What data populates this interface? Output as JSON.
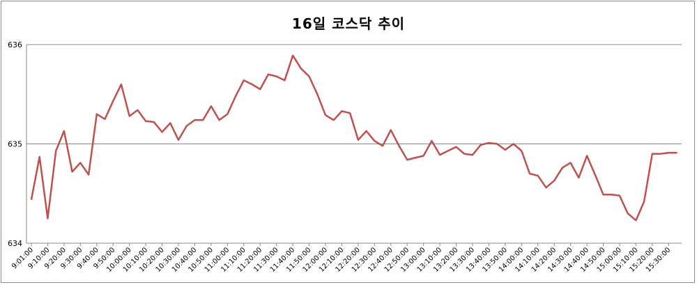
{
  "chart_data": {
    "type": "line",
    "title": "16일 코스닥 추이",
    "xlabel": "",
    "ylabel": "",
    "ylim": [
      634,
      636
    ],
    "yticks": [
      634,
      635,
      636
    ],
    "grid": true,
    "legend": "none",
    "line_color": "#c0504d",
    "x": [
      "9:01:00",
      "9:05:00",
      "9:10:00",
      "9:15:00",
      "9:20:00",
      "9:25:00",
      "9:30:00",
      "9:35:00",
      "9:40:00",
      "9:45:00",
      "9:50:00",
      "9:55:00",
      "10:00:00",
      "10:05:00",
      "10:10:00",
      "10:15:00",
      "10:20:00",
      "10:25:00",
      "10:30:00",
      "10:35:00",
      "10:40:00",
      "10:45:00",
      "10:50:00",
      "10:55:00",
      "11:00:00",
      "11:05:00",
      "11:10:00",
      "11:15:00",
      "11:20:00",
      "11:25:00",
      "11:30:00",
      "11:35:00",
      "11:40:00",
      "11:45:00",
      "11:50:00",
      "11:55:00",
      "12:00:00",
      "12:05:00",
      "12:10:00",
      "12:15:00",
      "12:20:00",
      "12:25:00",
      "12:30:00",
      "12:35:00",
      "12:40:00",
      "12:45:00",
      "12:50:00",
      "12:55:00",
      "13:00:00",
      "13:05:00",
      "13:10:00",
      "13:15:00",
      "13:20:00",
      "13:25:00",
      "13:30:00",
      "13:35:00",
      "13:40:00",
      "13:45:00",
      "13:50:00",
      "13:55:00",
      "14:00:00",
      "14:05:00",
      "14:10:00",
      "14:15:00",
      "14:20:00",
      "14:25:00",
      "14:30:00",
      "14:35:00",
      "14:40:00",
      "14:45:00",
      "14:50:00",
      "14:55:00",
      "15:00:00",
      "15:05:00",
      "15:10:00",
      "15:15:00",
      "15:20:00",
      "15:25:00",
      "15:30:00",
      "15:35:00"
    ],
    "xtick_labels": [
      "9:01:00",
      "9:10:00",
      "9:20:00",
      "9:30:00",
      "9:40:00",
      "9:50:00",
      "10:00:00",
      "10:10:00",
      "10:20:00",
      "10:30:00",
      "10:40:00",
      "10:50:00",
      "11:00:00",
      "11:10:00",
      "11:20:00",
      "11:30:00",
      "11:40:00",
      "11:50:00",
      "12:00:00",
      "12:10:00",
      "12:20:00",
      "12:30:00",
      "12:40:00",
      "12:50:00",
      "13:00:00",
      "13:10:00",
      "13:20:00",
      "13:30:00",
      "13:40:00",
      "13:50:00",
      "14:00:00",
      "14:10:00",
      "14:20:00",
      "14:30:00",
      "14:40:00",
      "14:50:00",
      "15:00:00",
      "15:10:00",
      "15:20:00",
      "15:30:00"
    ],
    "series": [
      {
        "values": [
          634.44,
          634.87,
          634.25,
          634.93,
          635.13,
          634.72,
          634.81,
          634.69,
          635.3,
          635.25,
          635.43,
          635.6,
          635.28,
          635.34,
          635.23,
          635.22,
          635.12,
          635.21,
          635.04,
          635.18,
          635.24,
          635.24,
          635.38,
          635.24,
          635.3,
          635.48,
          635.64,
          635.6,
          635.55,
          635.7,
          635.68,
          635.64,
          635.89,
          635.76,
          635.68,
          635.5,
          635.29,
          635.24,
          635.33,
          635.31,
          635.04,
          635.13,
          635.03,
          634.98,
          635.14,
          634.98,
          634.84,
          634.86,
          634.88,
          635.03,
          634.89,
          634.93,
          634.97,
          634.9,
          634.89,
          634.99,
          635.01,
          635.0,
          634.94,
          635.0,
          634.93,
          634.7,
          634.68,
          634.56,
          634.63,
          634.76,
          634.81,
          634.66,
          634.88,
          634.69,
          634.49,
          634.49,
          634.48,
          634.3,
          634.23,
          634.42,
          634.9,
          634.9,
          634.91,
          634.91
        ]
      }
    ]
  }
}
